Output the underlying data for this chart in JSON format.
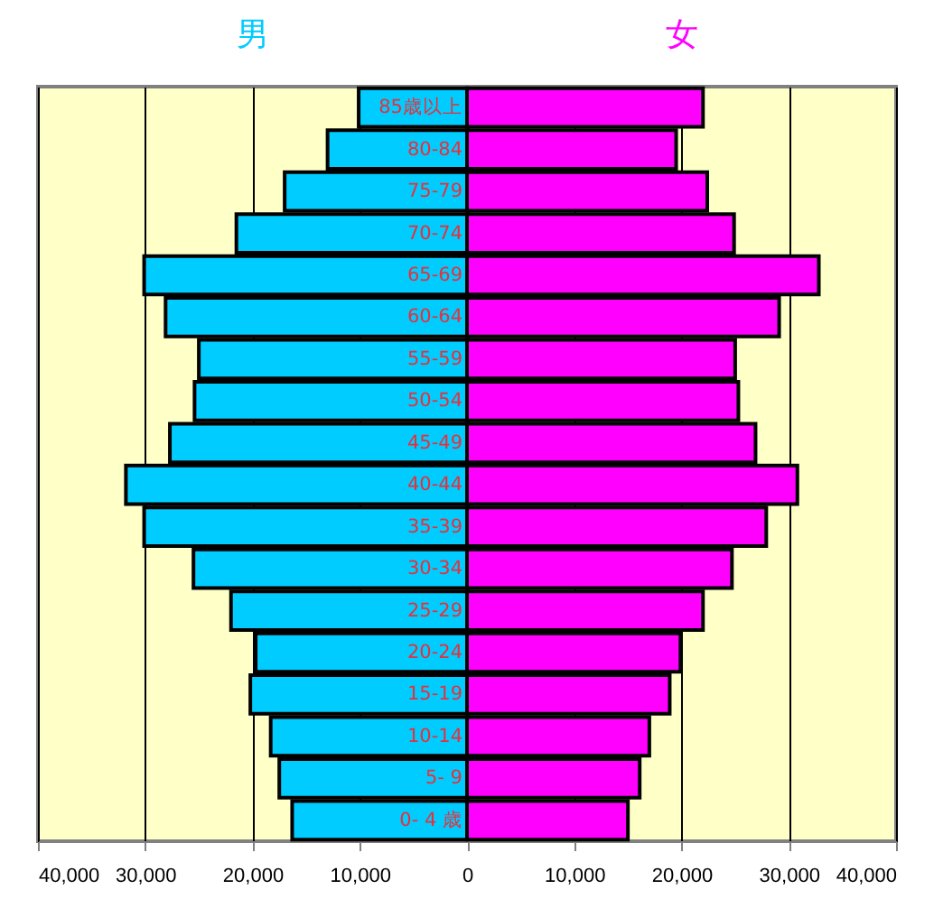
{
  "chart_data": {
    "type": "bar",
    "orientation": "horizontal",
    "stacked": true,
    "categories": [
      "85歳以上",
      "80-84",
      "75-79",
      "70-74",
      "65-69",
      "60-64",
      "55-59",
      "50-54",
      "45-49",
      "40-44",
      "35-39",
      "30-34",
      "25-29",
      "20-24",
      "15-19",
      "10-14",
      "5- 9",
      "0- 4 歳"
    ],
    "series": [
      {
        "name": "男",
        "color": "#00ccff",
        "values": [
          -10100,
          -13000,
          -17000,
          -21500,
          -30100,
          -28100,
          -25000,
          -25400,
          -27700,
          -31800,
          -30100,
          -25500,
          -22000,
          -19700,
          -20200,
          -18300,
          -17500,
          -16300
        ]
      },
      {
        "name": "女",
        "color": "#ff00ff",
        "values": [
          22000,
          19500,
          22400,
          24900,
          32800,
          29100,
          25000,
          25300,
          26900,
          30800,
          27900,
          24700,
          22000,
          19900,
          18900,
          17000,
          16100,
          15000
        ]
      }
    ],
    "xlim": [
      -40000,
      40000
    ],
    "xticks": [
      {
        "value": -40000,
        "label": "40,000"
      },
      {
        "value": -30000,
        "label": "30,000"
      },
      {
        "value": -20000,
        "label": "20,000"
      },
      {
        "value": -10000,
        "label": "10,000"
      },
      0,
      {
        "value": 10000,
        "label": "10,000"
      },
      {
        "value": 20000,
        "label": "20,000"
      },
      {
        "value": 30000,
        "label": "30,000"
      },
      {
        "value": 40000,
        "label": "40,000"
      }
    ],
    "grid": "x"
  }
}
